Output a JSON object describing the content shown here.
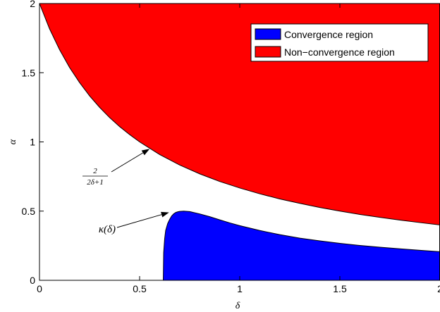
{
  "chart_data": {
    "type": "area",
    "xlabel": "δ",
    "ylabel": "α",
    "xlim": [
      0,
      2
    ],
    "ylim": [
      0,
      2
    ],
    "xticks": [
      0,
      0.5,
      1,
      1.5,
      2
    ],
    "xtick_labels": [
      "0",
      "0.5",
      "1",
      "1.5",
      "2"
    ],
    "yticks": [
      0,
      0.5,
      1,
      1.5,
      2
    ],
    "ytick_labels": [
      "0",
      "0.5",
      "1",
      "1.5",
      "2"
    ],
    "grid": false,
    "legend_position": "top-right",
    "series": [
      {
        "name": "Convergence region",
        "color": "#0000ff",
        "x": [
          0.618,
          0.62,
          0.625,
          0.63,
          0.64,
          0.65,
          0.66,
          0.67,
          0.68,
          0.69,
          0.7,
          0.72,
          0.75,
          0.8,
          0.85,
          0.9,
          0.95,
          1.0,
          1.1,
          1.2,
          1.3,
          1.4,
          1.5,
          1.6,
          1.7,
          1.8,
          1.9,
          2.0
        ],
        "upper": [
          0.0,
          0.2,
          0.3,
          0.36,
          0.41,
          0.44,
          0.465,
          0.48,
          0.49,
          0.495,
          0.498,
          0.5,
          0.497,
          0.48,
          0.46,
          0.437,
          0.415,
          0.395,
          0.36,
          0.33,
          0.305,
          0.285,
          0.267,
          0.252,
          0.239,
          0.228,
          0.217,
          0.207
        ],
        "lower": 0
      },
      {
        "name": "Non-convergence region",
        "color": "#ff0000",
        "x": [
          0,
          0.05,
          0.1,
          0.15,
          0.2,
          0.25,
          0.3,
          0.35,
          0.4,
          0.45,
          0.5,
          0.6,
          0.7,
          0.8,
          0.9,
          1.0,
          1.1,
          1.2,
          1.3,
          1.4,
          1.5,
          1.6,
          1.7,
          1.8,
          1.9,
          2.0
        ],
        "lower": [
          2.0,
          1.818,
          1.667,
          1.538,
          1.429,
          1.333,
          1.25,
          1.176,
          1.111,
          1.053,
          1.0,
          0.909,
          0.833,
          0.769,
          0.714,
          0.667,
          0.625,
          0.588,
          0.556,
          0.526,
          0.5,
          0.476,
          0.455,
          0.435,
          0.417,
          0.4
        ],
        "upper": 2
      }
    ],
    "legend": [
      "Convergence region",
      "Non−convergence region"
    ],
    "annotations": [
      {
        "numerator": "2",
        "denominator": "2δ+1",
        "target": [
          0.55,
          0.95
        ]
      },
      {
        "text": "κ(δ)",
        "target": [
          0.64,
          0.47
        ]
      }
    ]
  }
}
